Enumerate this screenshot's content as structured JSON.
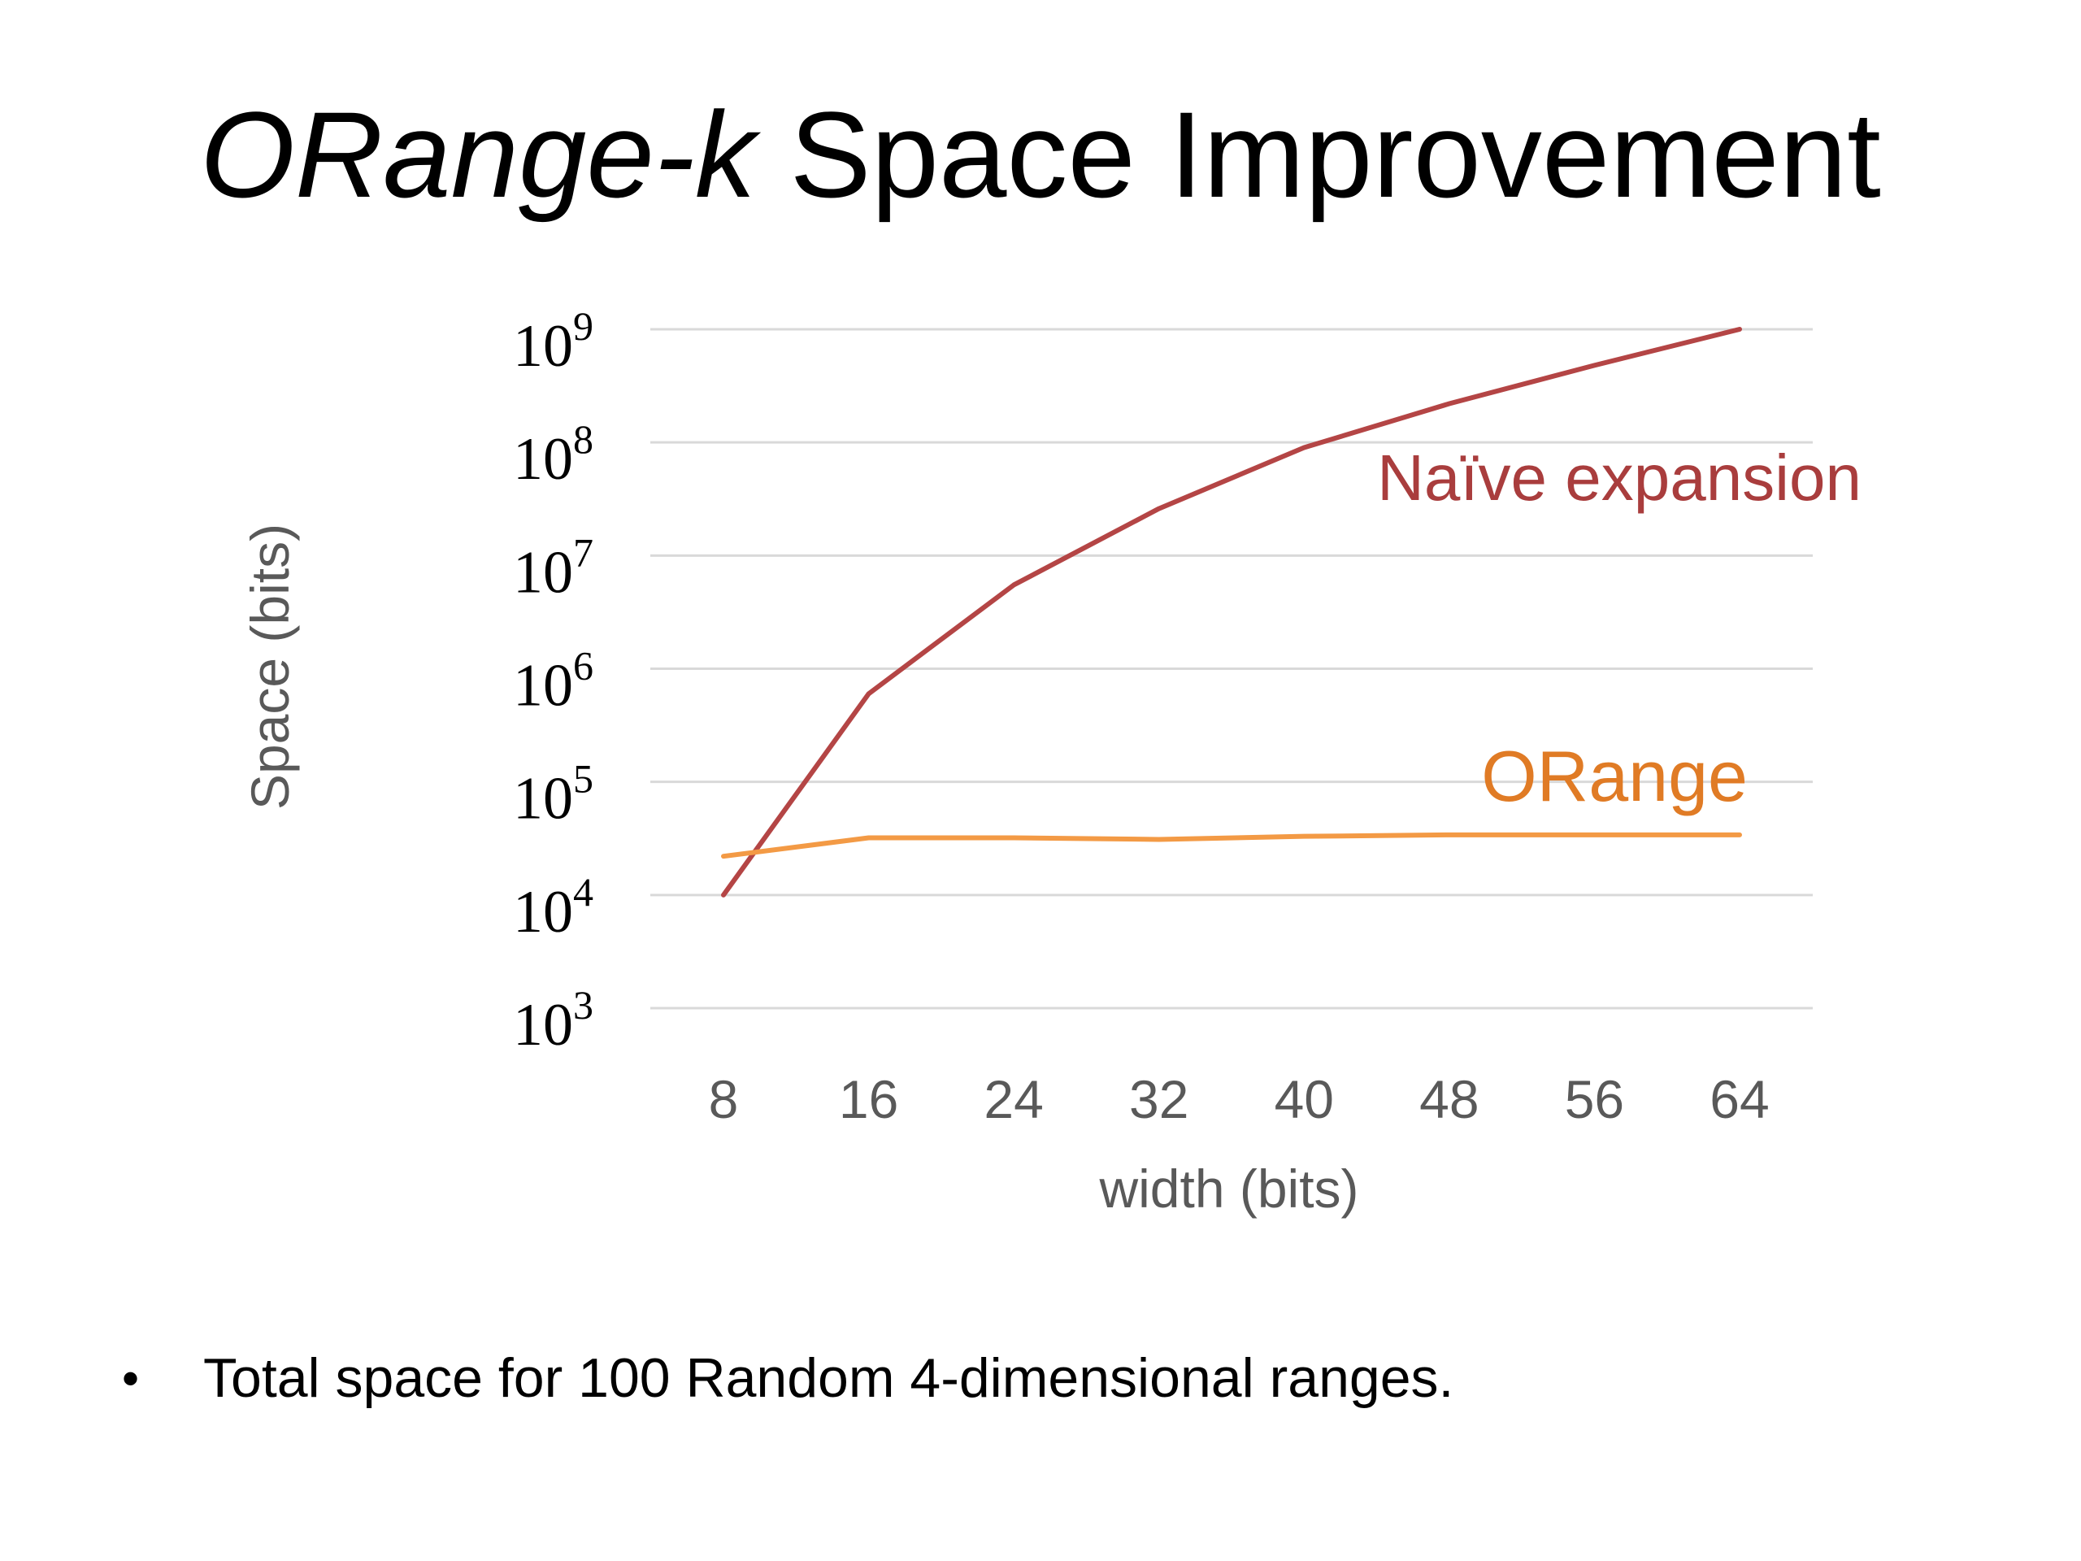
{
  "slide": {
    "title_italic": "ORange-k",
    "title_rest": " Space Improvement",
    "bullet_marker": "•",
    "bullet_text": "Total space for 100 Random 4-dimensional ranges."
  },
  "chart_data": {
    "type": "line",
    "scale_y": "log10",
    "xlabel": "width (bits)",
    "ylabel": "Space (bits)",
    "x": [
      8,
      16,
      24,
      32,
      40,
      48,
      56,
      64
    ],
    "ylim": [
      1000,
      1000000000
    ],
    "y_ticks": [
      {
        "value": 1000,
        "base": "10",
        "exp": "3"
      },
      {
        "value": 10000,
        "base": "10",
        "exp": "4"
      },
      {
        "value": 100000,
        "base": "10",
        "exp": "5"
      },
      {
        "value": 1000000,
        "base": "10",
        "exp": "6"
      },
      {
        "value": 10000000,
        "base": "10",
        "exp": "7"
      },
      {
        "value": 100000000,
        "base": "10",
        "exp": "8"
      },
      {
        "value": 1000000000,
        "base": "10",
        "exp": "9"
      }
    ],
    "grid": true,
    "legend": "inline labels",
    "series": [
      {
        "name": "Naïve expansion",
        "color": "#b44545",
        "label_color": "#a93d3d",
        "values": [
          10000,
          600000,
          5500000,
          26000000,
          90000000,
          220000000,
          480000000,
          1000000000
        ]
      },
      {
        "name": "ORange",
        "color": "#f39a45",
        "label_color": "#e07b25",
        "values": [
          22000,
          32000,
          32000,
          31000,
          33000,
          34000,
          34000,
          34000
        ]
      }
    ]
  }
}
